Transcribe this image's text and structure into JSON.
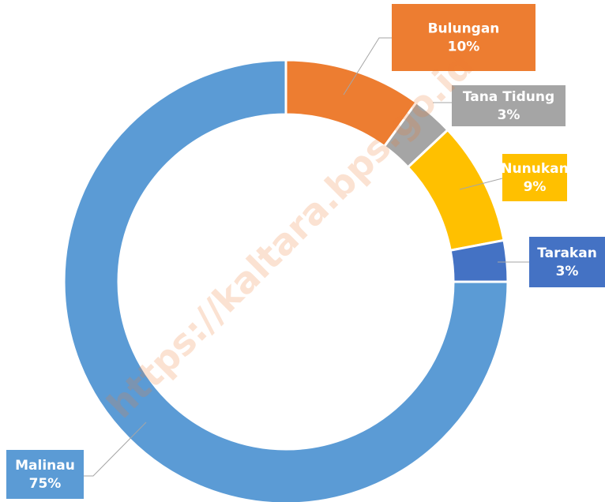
{
  "chart_data": {
    "type": "pie",
    "categories": [
      "Bulungan",
      "Tana Tidung",
      "Nunukan",
      "Tarakan",
      "Malinau"
    ],
    "values": [
      10,
      3,
      9,
      3,
      75
    ],
    "value_labels": [
      "10%",
      "3%",
      "9%",
      "3%",
      "75%"
    ],
    "colors": [
      "#ed7d31",
      "#a5a5a5",
      "#ffc000",
      "#4472c4",
      "#5b9bd5"
    ],
    "watermark": "https://kaltara.bps.go.id"
  }
}
